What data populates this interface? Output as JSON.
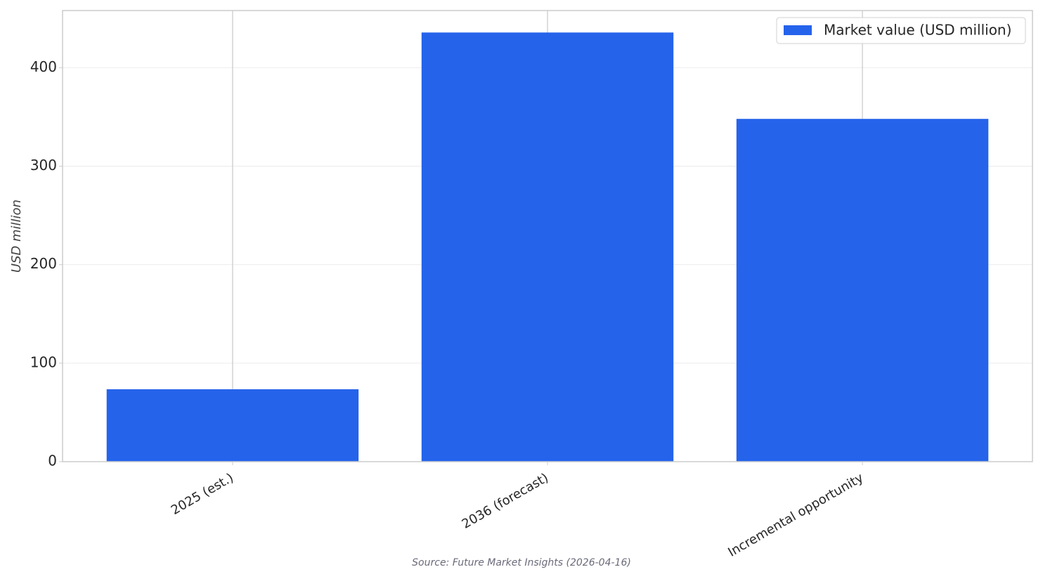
{
  "chart_data": {
    "type": "bar",
    "categories": [
      "2025 (est.)",
      "2036 (forecast)",
      "Incremental opportunity"
    ],
    "series": [
      {
        "name": "Market value (USD million)",
        "color": "#2563eb",
        "values": [
          73.5,
          435.7,
          348
        ]
      }
    ],
    "ylabel": "USD million",
    "ylim": [
      0,
      458
    ],
    "yticks": [
      0,
      100,
      200,
      300,
      400
    ],
    "grid": true,
    "legend": "upper right",
    "source": "Source: Future Market Insights (2026-04-16)"
  }
}
